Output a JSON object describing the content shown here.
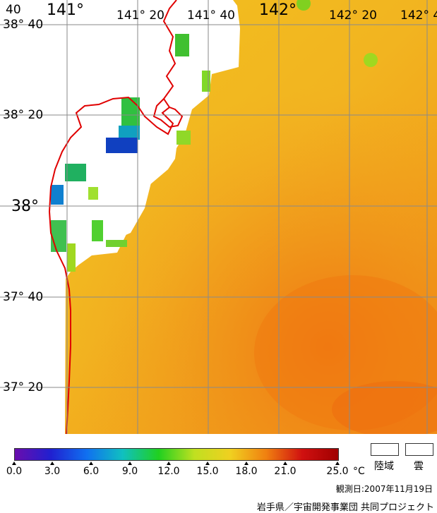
{
  "map": {
    "lon_labels": [
      "141°",
      "141° 20",
      "141° 40",
      "142°",
      "142° 20",
      "142° 4"
    ],
    "lat_labels": [
      "38° 40",
      "38° 20",
      "38°",
      "37° 40",
      "37° 20"
    ],
    "corner_label": "40",
    "coastline_color": "#e00000",
    "land_color": "#ffffff",
    "sea_color_dominant": "#f0b020",
    "warm_sea_color": "#f08010"
  },
  "legend": {
    "unit": "°C",
    "ticks": [
      "0.0",
      "3.0",
      "6.0",
      "9.0",
      "12.0",
      "15.0",
      "18.0",
      "21.0",
      "25.0"
    ],
    "gradient_colors": [
      "#6a0dad",
      "#2020d0",
      "#1070f0",
      "#10c0c0",
      "#20d020",
      "#c0e020",
      "#f0d020",
      "#f08010",
      "#d01010",
      "#a00000"
    ],
    "land_label": "陸域",
    "cloud_label": "雲"
  },
  "footer": {
    "observation_date": "観測日:2007年11月19日",
    "credit": "岩手県／宇宙開発事業団 共同プロジェクト"
  }
}
